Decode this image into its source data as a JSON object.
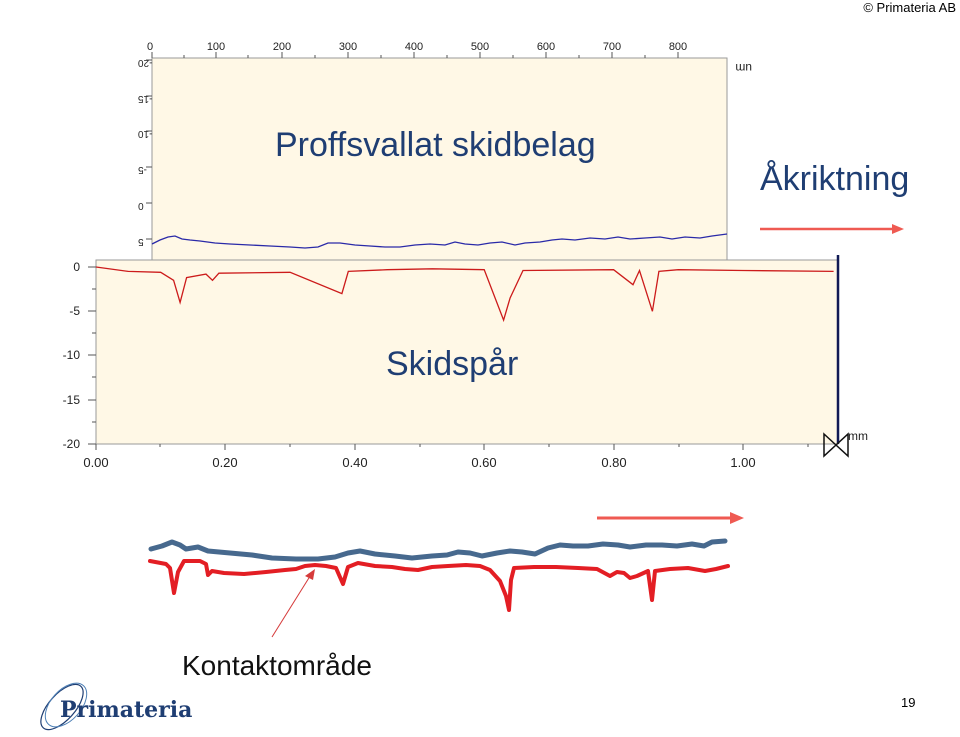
{
  "copyright": "© Primateria AB",
  "title": "Proffsvallat skidbelag",
  "direction_label": "Åkriktning",
  "track_label": "Skidspår",
  "contact_label": "Kontaktområde",
  "page_number": "19",
  "logo": {
    "text": "Primateria"
  },
  "colors": {
    "title_text": "#1f3e73",
    "red_trace": "#e31e24",
    "blue_trace": "#47698e",
    "plot_bg": "#fff8e6",
    "arrow": "#ef5a52"
  },
  "upper_chart": {
    "x_ticks": [
      "0",
      "100",
      "200",
      "300",
      "400",
      "500",
      "600",
      "700",
      "800"
    ],
    "y_ticks": [
      "-20",
      "-15",
      "-10",
      "-5",
      "0",
      "5"
    ],
    "y_unit": "um"
  },
  "lower_chart": {
    "x_ticks": [
      "0.00",
      "0.20",
      "0.40",
      "0.60",
      "0.80",
      "1.00"
    ],
    "y_ticks": [
      "0",
      "-5",
      "-10",
      "-15",
      "-20"
    ],
    "x_unit": "mm"
  },
  "chart_data": {
    "type": "line",
    "title": "Proffsvallat skidbelag",
    "xlabel": "mm",
    "ylabel": "",
    "xlim": [
      0,
      1.15
    ],
    "ylim": [
      -20,
      0
    ],
    "categories": [
      "0.00",
      "0.20",
      "0.40",
      "0.60",
      "0.80",
      "1.00"
    ],
    "series": [
      {
        "name": "Skidspår",
        "x": [
          0.0,
          0.05,
          0.1,
          0.12,
          0.13,
          0.14,
          0.17,
          0.18,
          0.19,
          0.3,
          0.38,
          0.39,
          0.45,
          0.52,
          0.6,
          0.63,
          0.64,
          0.66,
          0.8,
          0.83,
          0.84,
          0.86,
          0.87,
          0.9,
          1.0,
          1.14
        ],
        "values": [
          0,
          -0.5,
          -0.6,
          -1.5,
          -4.0,
          -1.2,
          -0.8,
          -1.5,
          -0.7,
          -0.6,
          -3.0,
          -0.5,
          -0.3,
          -0.2,
          -0.3,
          -6.0,
          -3.5,
          -0.4,
          -0.3,
          -2.0,
          -0.4,
          -5.0,
          -0.5,
          -0.3,
          -0.4,
          -0.5
        ]
      }
    ]
  }
}
